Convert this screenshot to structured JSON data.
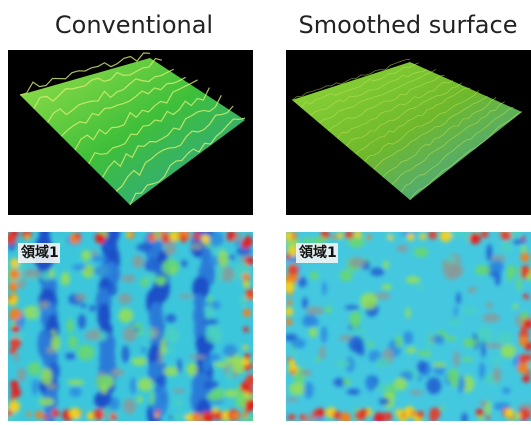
{
  "panels": [
    {
      "title": "Conventional",
      "map_label": "領域1"
    },
    {
      "title": "Smoothed surface",
      "map_label": "領域1"
    }
  ]
}
